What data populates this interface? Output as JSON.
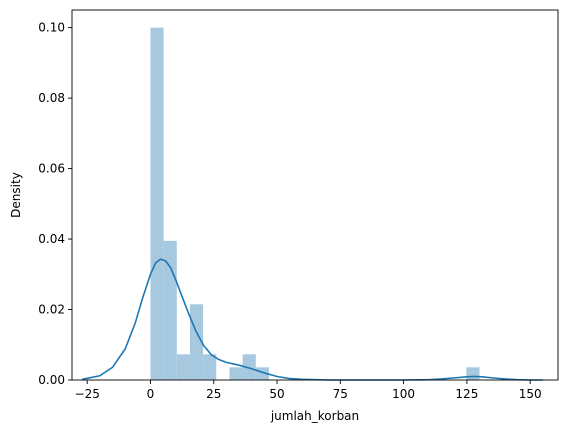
{
  "chart_data": {
    "type": "histogram_with_kde",
    "title": "",
    "xlabel": "jumlah_korban",
    "ylabel": "Density",
    "xlim": [
      -31,
      161
    ],
    "ylim": [
      0,
      0.105
    ],
    "grid": false,
    "x_ticks": [
      -25,
      0,
      25,
      50,
      75,
      100,
      125,
      150
    ],
    "y_ticks": [
      0.0,
      0.02,
      0.04,
      0.06,
      0.08,
      0.1
    ],
    "x_tick_labels": [
      "−25",
      "0",
      "25",
      "50",
      "75",
      "100",
      "125",
      "150"
    ],
    "y_tick_labels": [
      "0.00",
      "0.02",
      "0.04",
      "0.06",
      "0.08",
      "0.10"
    ],
    "histogram": {
      "color": "#a6c9df",
      "bins": [
        {
          "x0": 0.0,
          "x1": 5.2,
          "density": 0.1
        },
        {
          "x0": 5.2,
          "x1": 10.4,
          "density": 0.0395
        },
        {
          "x0": 10.4,
          "x1": 15.6,
          "density": 0.0073
        },
        {
          "x0": 15.6,
          "x1": 20.8,
          "density": 0.0215
        },
        {
          "x0": 20.8,
          "x1": 26.0,
          "density": 0.0073
        },
        {
          "x0": 31.2,
          "x1": 36.4,
          "density": 0.0036
        },
        {
          "x0": 36.4,
          "x1": 41.6,
          "density": 0.0073
        },
        {
          "x0": 41.6,
          "x1": 46.8,
          "density": 0.0036
        },
        {
          "x0": 124.8,
          "x1": 130.0,
          "density": 0.0036
        }
      ]
    },
    "kde": {
      "color": "#1f77b4",
      "x": [
        -27,
        -20,
        -15,
        -10,
        -6,
        -3,
        0,
        2,
        4,
        6,
        8,
        10,
        12,
        15,
        18,
        21,
        24,
        27,
        30,
        35,
        40,
        45,
        50,
        55,
        60,
        70,
        80,
        90,
        100,
        110,
        115,
        120,
        125,
        128,
        131,
        135,
        140,
        145,
        150,
        155
      ],
      "y": [
        0.0002,
        0.0012,
        0.0036,
        0.0088,
        0.0162,
        0.0235,
        0.03,
        0.0332,
        0.0343,
        0.0338,
        0.0318,
        0.0284,
        0.0246,
        0.019,
        0.0138,
        0.0098,
        0.0072,
        0.0058,
        0.005,
        0.0042,
        0.0032,
        0.002,
        0.001,
        0.0004,
        0.0002,
        0.0,
        0.0,
        0.0,
        0.0,
        0.0001,
        0.0003,
        0.0006,
        0.0009,
        0.001,
        0.0009,
        0.0006,
        0.0003,
        0.0001,
        0.0,
        0.0
      ]
    }
  }
}
